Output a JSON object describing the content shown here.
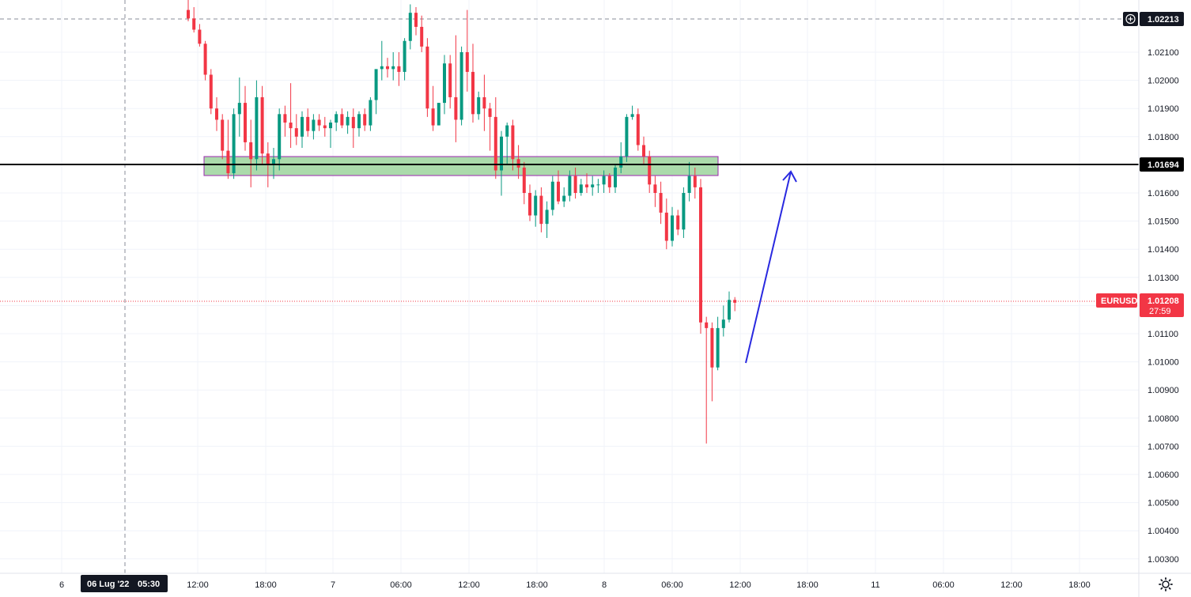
{
  "chart_data": {
    "type": "candlestick",
    "symbol": "EURUSD",
    "y_axis": {
      "range": [
        1.0025,
        1.0232
      ],
      "tick_labels": [
        "1.02100",
        "1.02000",
        "1.01900",
        "1.01800",
        "1.01600",
        "1.01500",
        "1.01400",
        "1.01300",
        "1.01100",
        "1.01000",
        "1.00900",
        "1.00800",
        "1.00700",
        "1.00600",
        "1.00500",
        "1.00400",
        "1.00300"
      ],
      "tick_values": [
        1.021,
        1.02,
        1.019,
        1.018,
        1.016,
        1.015,
        1.014,
        1.013,
        1.011,
        1.01,
        1.009,
        1.008,
        1.007,
        1.006,
        1.005,
        1.004,
        1.003
      ]
    },
    "x_axis": {
      "tick_labels": [
        "6",
        "12:00",
        "18:00",
        "7",
        "06:00",
        "12:00",
        "18:00",
        "8",
        "06:00",
        "12:00",
        "18:00",
        "11",
        "06:00",
        "12:00",
        "18:00"
      ],
      "crosshair_label": {
        "date": "06 Lug '22",
        "time": "05:30"
      }
    },
    "grid": true,
    "price_tags": {
      "crosshair": {
        "value": "1.02213",
        "price": 1.02213
      },
      "level": {
        "value": "1.01694",
        "price": 1.01694
      },
      "last": {
        "symbol": "EURUSD",
        "value": "1.01208",
        "countdown": "27:59",
        "price": 1.01208
      }
    },
    "zone": {
      "top": 1.0172,
      "bottom": 1.0165
    },
    "arrow": {
      "from_price": 1.0099,
      "to_price": 1.0167
    },
    "candles_ohlc": [
      [
        1.0225,
        1.0229,
        1.0221,
        1.0222
      ],
      [
        1.0222,
        1.0226,
        1.0217,
        1.0218
      ],
      [
        1.0218,
        1.022,
        1.0212,
        1.0213
      ],
      [
        1.0213,
        1.0214,
        1.02,
        1.0202
      ],
      [
        1.0202,
        1.0204,
        1.0188,
        1.019
      ],
      [
        1.019,
        1.0194,
        1.0182,
        1.0186
      ],
      [
        1.0186,
        1.0188,
        1.0172,
        1.0175
      ],
      [
        1.0175,
        1.0186,
        1.0165,
        1.0167
      ],
      [
        1.0167,
        1.019,
        1.0165,
        1.0188
      ],
      [
        1.0188,
        1.0201,
        1.018,
        1.0192
      ],
      [
        1.0192,
        1.0198,
        1.0175,
        1.0178
      ],
      [
        1.0178,
        1.0186,
        1.0162,
        1.0172
      ],
      [
        1.0172,
        1.02,
        1.0168,
        1.0194
      ],
      [
        1.0194,
        1.0198,
        1.017,
        1.0174
      ],
      [
        1.0174,
        1.0178,
        1.0162,
        1.017
      ],
      [
        1.017,
        1.0176,
        1.0165,
        1.0172
      ],
      [
        1.0172,
        1.019,
        1.0168,
        1.0188
      ],
      [
        1.0188,
        1.0191,
        1.018,
        1.0185
      ],
      [
        1.0185,
        1.0199,
        1.0176,
        1.0183
      ],
      [
        1.0183,
        1.0188,
        1.0177,
        1.018
      ],
      [
        1.018,
        1.0189,
        1.0176,
        1.0187
      ],
      [
        1.0187,
        1.019,
        1.018,
        1.0182
      ],
      [
        1.0182,
        1.0188,
        1.0179,
        1.0186
      ],
      [
        1.0186,
        1.0188,
        1.0182,
        1.0184
      ],
      [
        1.0184,
        1.0187,
        1.018,
        1.0183
      ],
      [
        1.0183,
        1.0186,
        1.0176,
        1.0185
      ],
      [
        1.0185,
        1.0189,
        1.0182,
        1.0188
      ],
      [
        1.0188,
        1.019,
        1.0183,
        1.0184
      ],
      [
        1.0184,
        1.0189,
        1.0181,
        1.0187
      ],
      [
        1.0187,
        1.019,
        1.0176,
        1.0183
      ],
      [
        1.0183,
        1.0189,
        1.018,
        1.0188
      ],
      [
        1.0188,
        1.019,
        1.0182,
        1.0184
      ],
      [
        1.0184,
        1.0194,
        1.0182,
        1.0193
      ],
      [
        1.0193,
        1.0203,
        1.0188,
        1.0204
      ],
      [
        1.0204,
        1.0214,
        1.02,
        1.0205
      ],
      [
        1.0205,
        1.0208,
        1.0201,
        1.0204
      ],
      [
        1.0204,
        1.021,
        1.02,
        1.0205
      ],
      [
        1.0205,
        1.021,
        1.0198,
        1.0203
      ],
      [
        1.0203,
        1.0215,
        1.02,
        1.0214
      ],
      [
        1.0214,
        1.0227,
        1.0211,
        1.0224
      ],
      [
        1.0224,
        1.0226,
        1.0216,
        1.0219
      ],
      [
        1.0219,
        1.0223,
        1.021,
        1.0212
      ],
      [
        1.0212,
        1.0215,
        1.0187,
        1.019
      ],
      [
        1.019,
        1.0198,
        1.0182,
        1.0184
      ],
      [
        1.0184,
        1.0192,
        1.0184,
        1.0192
      ],
      [
        1.0192,
        1.0209,
        1.0188,
        1.0206
      ],
      [
        1.0206,
        1.0209,
        1.019,
        1.0194
      ],
      [
        1.0194,
        1.0216,
        1.0178,
        1.0186
      ],
      [
        1.0186,
        1.0212,
        1.0184,
        1.021
      ],
      [
        1.021,
        1.0225,
        1.0196,
        1.0203
      ],
      [
        1.0203,
        1.0213,
        1.0185,
        1.0188
      ],
      [
        1.0188,
        1.0196,
        1.0186,
        1.0194
      ],
      [
        1.0194,
        1.0202,
        1.0182,
        1.019
      ],
      [
        1.019,
        1.0192,
        1.0175,
        1.0187
      ],
      [
        1.0187,
        1.0194,
        1.0165,
        1.0168
      ],
      [
        1.0168,
        1.0182,
        1.0159,
        1.018
      ],
      [
        1.018,
        1.0185,
        1.017,
        1.0184
      ],
      [
        1.0184,
        1.0186,
        1.0168,
        1.0172
      ],
      [
        1.0172,
        1.0177,
        1.0165,
        1.0169
      ],
      [
        1.0169,
        1.0171,
        1.0156,
        1.016
      ],
      [
        1.016,
        1.0163,
        1.015,
        1.0152
      ],
      [
        1.0152,
        1.0161,
        1.0148,
        1.0159
      ],
      [
        1.0159,
        1.0162,
        1.0146,
        1.0149
      ],
      [
        1.0149,
        1.0157,
        1.0144,
        1.0154
      ],
      [
        1.0154,
        1.0166,
        1.0152,
        1.0164
      ],
      [
        1.0164,
        1.0168,
        1.0156,
        1.0157
      ],
      [
        1.0157,
        1.0162,
        1.0155,
        1.0159
      ],
      [
        1.0159,
        1.0168,
        1.0157,
        1.0166
      ],
      [
        1.0166,
        1.0169,
        1.0158,
        1.016
      ],
      [
        1.016,
        1.0165,
        1.0159,
        1.0163
      ],
      [
        1.0163,
        1.0167,
        1.016,
        1.0162
      ],
      [
        1.0162,
        1.0166,
        1.0159,
        1.0163
      ],
      [
        1.0163,
        1.0165,
        1.016,
        1.0163
      ],
      [
        1.0163,
        1.0168,
        1.016,
        1.0166
      ],
      [
        1.0166,
        1.0167,
        1.016,
        1.0162
      ],
      [
        1.0162,
        1.017,
        1.016,
        1.0169
      ],
      [
        1.0169,
        1.0178,
        1.0167,
        1.0173
      ],
      [
        1.0173,
        1.0188,
        1.0171,
        1.0187
      ],
      [
        1.0187,
        1.0191,
        1.0186,
        1.0188
      ],
      [
        1.0188,
        1.019,
        1.0175,
        1.0177
      ],
      [
        1.0177,
        1.018,
        1.017,
        1.0173
      ],
      [
        1.0173,
        1.0175,
        1.016,
        1.0163
      ],
      [
        1.0163,
        1.0166,
        1.0155,
        1.016
      ],
      [
        1.016,
        1.0164,
        1.0149,
        1.0153
      ],
      [
        1.0153,
        1.0158,
        1.014,
        1.0143
      ],
      [
        1.0143,
        1.0155,
        1.0141,
        1.0152
      ],
      [
        1.0152,
        1.0154,
        1.0145,
        1.0147
      ],
      [
        1.0147,
        1.0162,
        1.0144,
        1.016
      ],
      [
        1.016,
        1.0171,
        1.0157,
        1.0166
      ],
      [
        1.0166,
        1.0169,
        1.0158,
        1.0162
      ],
      [
        1.0162,
        1.0165,
        1.011,
        1.0114
      ],
      [
        1.0114,
        1.0116,
        1.0071,
        1.0112
      ],
      [
        1.0112,
        1.0114,
        1.0086,
        1.0098
      ],
      [
        1.0098,
        1.0116,
        1.0097,
        1.0112
      ],
      [
        1.0112,
        1.012,
        1.0109,
        1.0115
      ],
      [
        1.0115,
        1.0125,
        1.0114,
        1.0122
      ],
      [
        1.0122,
        1.0123,
        1.0118,
        1.0121
      ]
    ]
  },
  "icons": {
    "plus": "plus-circle-icon",
    "settings": "gear-icon"
  },
  "colors": {
    "up": "#089981",
    "down": "#f23645",
    "zone_fill": "#9cd49c",
    "zone_border": "#9c27b0",
    "arrow": "#2929e0",
    "level_line": "#000000",
    "last_price": "#f23645",
    "axis_tag_dark": "#131722"
  }
}
